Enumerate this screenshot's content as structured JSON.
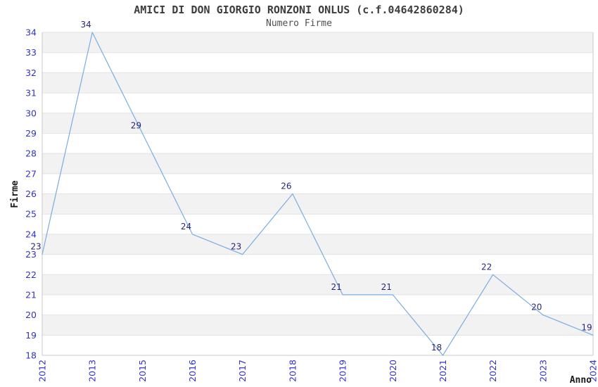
{
  "chart_data": {
    "type": "line",
    "title": "AMICI DI DON GIORGIO RONZONI ONLUS (c.f.04642860284)",
    "subtitle": "Numero Firme",
    "xlabel": "Anno",
    "ylabel": "Firme",
    "categories": [
      "2012",
      "2013",
      "2015",
      "2016",
      "2017",
      "2018",
      "2019",
      "2020",
      "2021",
      "2022",
      "2023",
      "2024"
    ],
    "values": [
      23,
      34,
      29,
      24,
      23,
      26,
      21,
      21,
      18,
      22,
      20,
      19
    ],
    "ylim": [
      18,
      34
    ],
    "ytick_step": 1,
    "yticks": [
      18,
      19,
      20,
      21,
      22,
      23,
      24,
      25,
      26,
      27,
      28,
      29,
      30,
      31,
      32,
      33,
      34
    ],
    "grid": true,
    "alternating_bands": true,
    "point_labels_visible": true,
    "legend_position": "none"
  },
  "colors": {
    "background": "#ffffff",
    "line": "#79ace2",
    "band": "#f2f2f2",
    "grid": "#e3e3e3",
    "axis": "#c8c8c8",
    "tick_label": "#3232cc",
    "point_label": "#26267a",
    "title": "#3d3d3d",
    "subtitle": "#4f4f4f",
    "axis_title": "#1a1a1a"
  }
}
